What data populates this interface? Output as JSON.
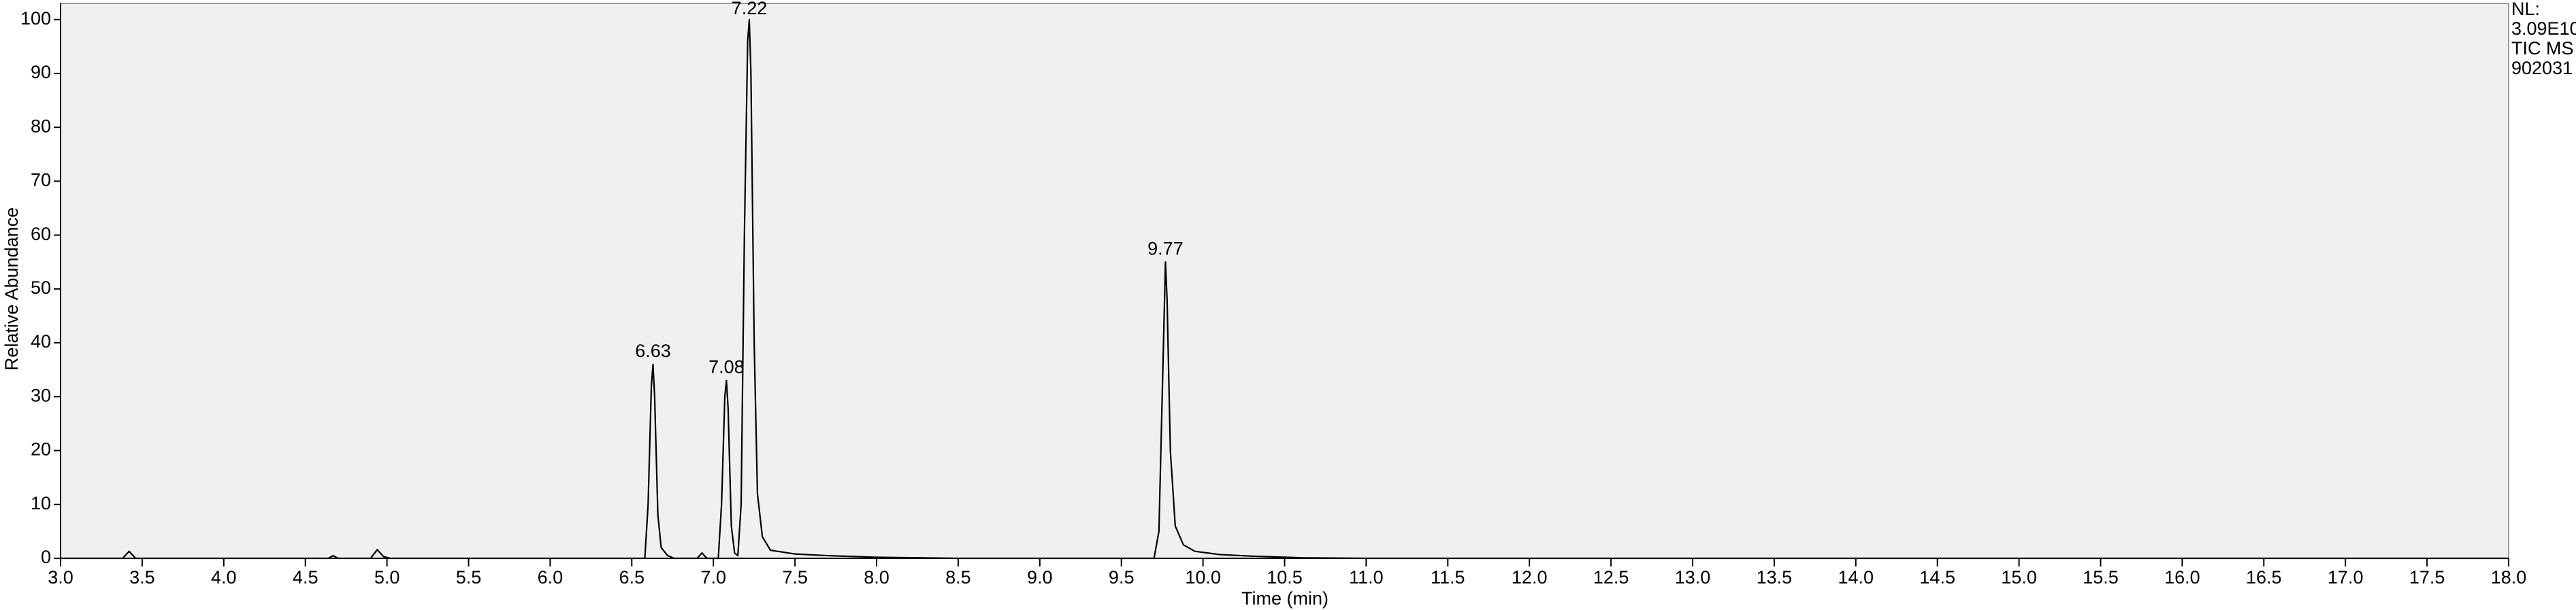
{
  "chart_data": {
    "type": "line",
    "header_lines": [
      "NL:",
      "3.09E10",
      "TIC  MS",
      "902031"
    ],
    "x_label": "Time (min)",
    "y_label": "Relative Abundance",
    "color": "#000000",
    "background": "#f0f0f0",
    "x": [
      3.0,
      3.38,
      3.42,
      3.46,
      4.64,
      4.67,
      4.7,
      4.9,
      4.94,
      4.98,
      5.02,
      6.58,
      6.6,
      6.62,
      6.63,
      6.64,
      6.66,
      6.68,
      6.72,
      6.76,
      6.9,
      6.93,
      6.96,
      7.03,
      7.05,
      7.07,
      7.08,
      7.09,
      7.11,
      7.13,
      7.15,
      7.17,
      7.19,
      7.21,
      7.22,
      7.23,
      7.25,
      7.27,
      7.3,
      7.35,
      7.5,
      7.7,
      8.0,
      8.5,
      9.7,
      9.73,
      9.75,
      9.77,
      9.78,
      9.8,
      9.83,
      9.88,
      9.95,
      10.1,
      10.3,
      10.6,
      11.0,
      18.0
    ],
    "values": [
      0,
      0,
      1.3,
      0,
      0,
      0.5,
      0,
      0,
      1.6,
      0.3,
      0,
      0,
      10,
      32,
      36,
      30,
      8,
      2,
      0.5,
      0,
      0,
      1,
      0,
      0,
      10,
      30,
      33,
      28,
      6,
      1,
      0.5,
      10,
      60,
      96,
      100,
      90,
      40,
      12,
      4,
      1.5,
      0.8,
      0.5,
      0.2,
      0,
      0,
      5,
      30,
      55,
      48,
      20,
      6,
      2.5,
      1.3,
      0.7,
      0.4,
      0.1,
      0,
      0
    ],
    "peak_labels": [
      6.63,
      7.08,
      7.22,
      9.77
    ],
    "xlim": [
      3.0,
      18.0
    ],
    "ylim": [
      0,
      103
    ],
    "yticks": [
      0,
      10,
      20,
      30,
      40,
      50,
      60,
      70,
      80,
      90,
      100
    ],
    "xticks": [
      {
        "value": 3,
        "label": "3.0"
      },
      {
        "value": 3.5,
        "label": "3.5"
      },
      {
        "value": 4,
        "label": "4.0"
      },
      {
        "value": 4.5,
        "label": "4.5"
      },
      {
        "value": 5,
        "label": "5.0"
      },
      {
        "value": 5.5,
        "label": "5.5"
      },
      {
        "value": 6,
        "label": "6.0"
      },
      {
        "value": 6.5,
        "label": "6.5"
      },
      {
        "value": 7,
        "label": "7.0"
      },
      {
        "value": 7.5,
        "label": "7.5"
      },
      {
        "value": 8,
        "label": "8.0"
      },
      {
        "value": 8.5,
        "label": "8.5"
      },
      {
        "value": 9,
        "label": "9.0"
      },
      {
        "value": 9.5,
        "label": "9.5"
      },
      {
        "value": 10,
        "label": "10.0"
      },
      {
        "value": 10.5,
        "label": "10.5"
      },
      {
        "value": 11,
        "label": "11.0"
      },
      {
        "value": 11.5,
        "label": "11.5"
      },
      {
        "value": 12,
        "label": "12.0"
      },
      {
        "value": 12.5,
        "label": "12.5"
      },
      {
        "value": 13,
        "label": "13.0"
      },
      {
        "value": 13.5,
        "label": "13.5"
      },
      {
        "value": 14,
        "label": "14.0"
      },
      {
        "value": 14.5,
        "label": "14.5"
      },
      {
        "value": 15,
        "label": "15.0"
      },
      {
        "value": 15.5,
        "label": "15.5"
      },
      {
        "value": 16,
        "label": "16.0"
      },
      {
        "value": 16.5,
        "label": "16.5"
      },
      {
        "value": 17,
        "label": "17.0"
      },
      {
        "value": 17.5,
        "label": "17.5"
      },
      {
        "value": 18,
        "label": "18.0"
      }
    ]
  }
}
